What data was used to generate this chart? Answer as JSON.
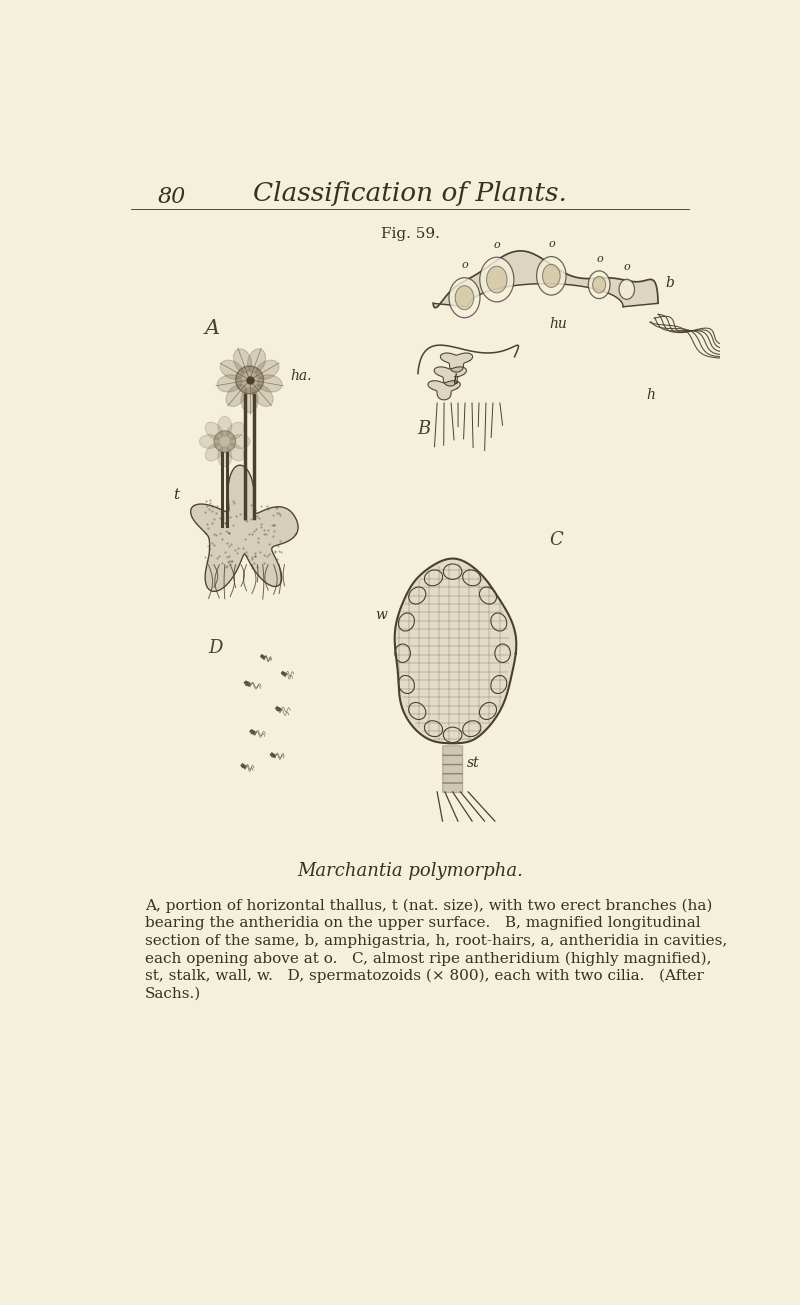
{
  "background_color": "#f5f0dc",
  "page_number": "80",
  "header_title": "Classification of Plants.",
  "fig_label": "Fig. 59.",
  "species_name": "Marchantia polymorpha.",
  "caption_text": "A, portion of horizontal thallus, t (nat. size), with two erect branches (ha)\nbearing the antheridia on the upper surface.   B, magnified longitudinal\nsection of the same, b, amphigastria, h, root-hairs, a, antheridia in cavities,\neach opening above at o.   C, almost ripe antheridium (highly magnified),\nst, stalk, wall, w.   D, spermatozoids (× 800), each with two cilia.   (After\nSachs.)",
  "drawing_color": "#4a4030",
  "text_color": "#3a3020",
  "light_drawing_color": "#7a6a50",
  "anth_fill_color": "#c8b890"
}
